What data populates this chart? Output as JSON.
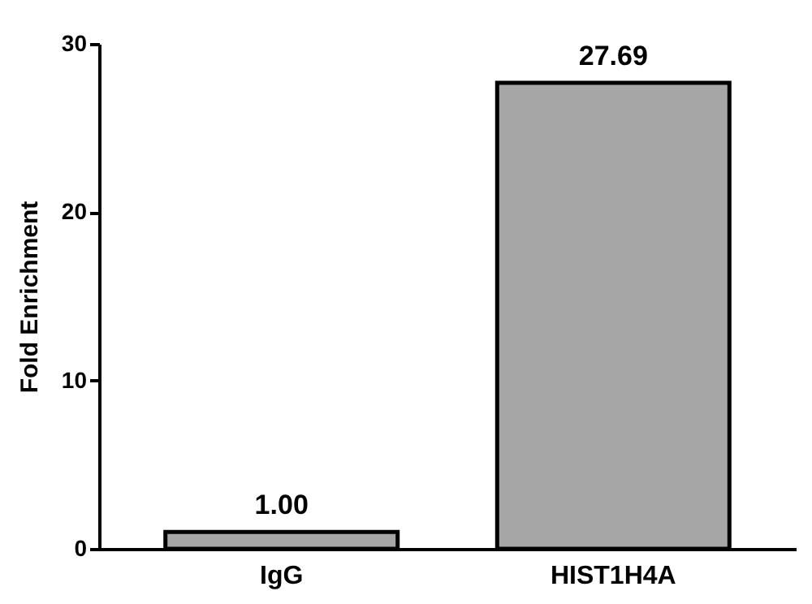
{
  "chart_data": {
    "type": "bar",
    "ylabel": "Fold Enrichment",
    "categories": [
      "IgG",
      "HIST1H4A"
    ],
    "values": [
      1.0,
      27.69
    ],
    "value_labels": [
      "1.00",
      "27.69"
    ],
    "color": "#a6a6a6",
    "ylim": [
      0,
      30
    ],
    "yticks": [
      0,
      10,
      20,
      30
    ],
    "grid": false
  }
}
